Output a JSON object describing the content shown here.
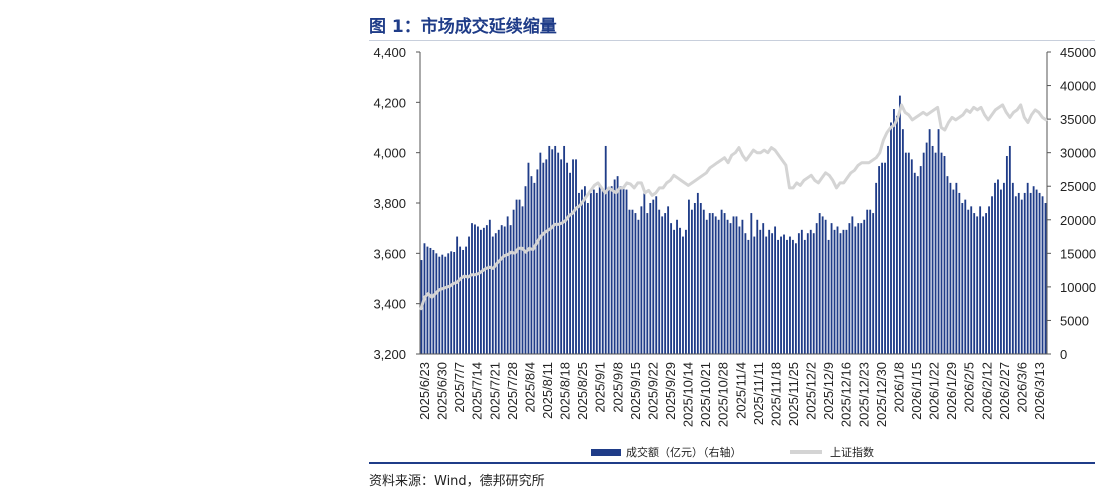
{
  "figure": {
    "title": "图 1：市场成交延续缩量",
    "source": "资料来源：Wind，德邦研究所"
  },
  "colors": {
    "bar": "#1f3c88",
    "line": "#d4d4d4",
    "axis": "#555555"
  },
  "chart_data": {
    "type": "bar+line",
    "title": "市场成交延续缩量",
    "left_axis": {
      "ylim": [
        3200,
        4400
      ],
      "ticks": [
        "4,400",
        "4,200",
        "4,000",
        "3,800",
        "3,600",
        "3,400",
        "3,200"
      ],
      "tick_values": [
        4400,
        4200,
        4000,
        3800,
        3600,
        3400,
        3200
      ]
    },
    "right_axis": {
      "ylim": [
        0,
        45000
      ],
      "ticks": [
        "45000",
        "40000",
        "35000",
        "30000",
        "25000",
        "20000",
        "15000",
        "10000",
        "5000",
        "0"
      ],
      "tick_values": [
        45000,
        40000,
        35000,
        30000,
        25000,
        20000,
        15000,
        10000,
        5000,
        0
      ]
    },
    "x_tick_labels": [
      "2025/6/23",
      "2025/6/30",
      "2025/7/7",
      "2025/7/14",
      "2025/7/21",
      "2025/7/28",
      "2025/8/4",
      "2025/8/11",
      "2025/8/18",
      "2025/8/25",
      "2025/9/1",
      "2025/9/8",
      "2025/9/15",
      "2025/9/22",
      "2025/9/29",
      "2025/10/14",
      "2025/10/21",
      "2025/10/28",
      "2025/11/4",
      "2025/11/11",
      "2025/11/18",
      "2025/11/25",
      "2025/12/2",
      "2025/12/9",
      "2025/12/16",
      "2025/12/23",
      "2025/12/30",
      "2026/1/8",
      "2026/1/15",
      "2026/1/22",
      "2026/1/29",
      "2026/2/5",
      "2026/2/12",
      "2026/2/27",
      "2026/3/6",
      "2026/3/13"
    ],
    "series": [
      {
        "name": "成交额（亿元）（右轴）",
        "type": "bar",
        "axis": "right",
        "values": [
          14000,
          16500,
          16000,
          15800,
          15500,
          15000,
          14500,
          14800,
          14500,
          15000,
          15300,
          15200,
          17500,
          16000,
          15500,
          16000,
          17500,
          19500,
          19300,
          19000,
          18500,
          18800,
          19200,
          20000,
          17500,
          18000,
          18500,
          19200,
          19000,
          20500,
          19200,
          21500,
          23000,
          23000,
          22000,
          25000,
          28500,
          26500,
          25500,
          27500,
          30000,
          28500,
          29000,
          31000,
          30500,
          31000,
          30000,
          29000,
          31000,
          28500,
          27000,
          29000,
          29000,
          24000,
          24500,
          25000,
          22500,
          24000,
          24500,
          24000,
          25000,
          24500,
          31000,
          24500,
          25000,
          26000,
          26500,
          25000,
          25000,
          24500,
          21500,
          21500,
          21000,
          20000,
          22000,
          24000,
          21000,
          22500,
          23000,
          23500,
          21500,
          20500,
          21000,
          22000,
          19500,
          18500,
          20000,
          18800,
          17500,
          18500,
          23000,
          21500,
          22500,
          24000,
          22500,
          21500,
          20000,
          21000,
          21000,
          20500,
          20000,
          21500,
          21000,
          20000,
          19500,
          20500,
          20500,
          19000,
          20000,
          18000,
          17000,
          21000,
          17500,
          20000,
          18500,
          19500,
          17500,
          18500,
          18000,
          19000,
          17000,
          17500,
          17800,
          17000,
          17500,
          17000,
          16500,
          18000,
          18500,
          17000,
          18000,
          18500,
          18000,
          19500,
          21000,
          20500,
          20000,
          17000,
          19500,
          18500,
          19000,
          18000,
          18500,
          18500,
          19500,
          20500,
          19000,
          19500,
          19500,
          20000,
          21500,
          21500,
          21000,
          25500,
          28000,
          28500,
          28500,
          31000,
          34500,
          36500,
          35500,
          38500,
          33500,
          30000,
          30000,
          29000,
          27000,
          26500,
          28000,
          30000,
          31500,
          33500,
          31000,
          30000,
          33500,
          30000,
          29500,
          26500,
          25500,
          24500,
          25500,
          24000,
          22500,
          23000,
          21500,
          22000,
          21000,
          20500,
          22000,
          20500,
          21000,
          22000,
          23500,
          25500,
          26000,
          24500,
          25500,
          29500,
          31000,
          25500,
          23500,
          24000,
          23000,
          24000,
          25500,
          24000,
          25000,
          24500,
          24000,
          23500,
          22500
        ]
      },
      {
        "name": "上证指数",
        "type": "line",
        "axis": "left",
        "values": [
          3380,
          3425,
          3440,
          3425,
          3440,
          3455,
          3460,
          3465,
          3470,
          3480,
          3485,
          3500,
          3510,
          3505,
          3515,
          3515,
          3520,
          3530,
          3540,
          3545,
          3540,
          3560,
          3575,
          3590,
          3595,
          3605,
          3600,
          3620,
          3620,
          3605,
          3620,
          3615,
          3640,
          3665,
          3680,
          3690,
          3700,
          3715,
          3715,
          3720,
          3730,
          3750,
          3760,
          3780,
          3790,
          3810,
          3830,
          3850,
          3870,
          3880,
          3860,
          3840,
          3860,
          3850,
          3840,
          3860,
          3860,
          3880,
          3875,
          3860,
          3880,
          3880,
          3840,
          3850,
          3830,
          3840,
          3860,
          3860,
          3880,
          3890,
          3910,
          3900,
          3890,
          3880,
          3870,
          3880,
          3890,
          3900,
          3910,
          3920,
          3940,
          3950,
          3960,
          3970,
          3980,
          3960,
          3990,
          4000,
          4020,
          3990,
          3970,
          3990,
          4010,
          4000,
          4000,
          4010,
          4000,
          4020,
          4010,
          3990,
          3970,
          3950,
          3860,
          3860,
          3880,
          3870,
          3890,
          3900,
          3910,
          3890,
          3880,
          3900,
          3920,
          3910,
          3890,
          3860,
          3880,
          3880,
          3900,
          3920,
          3930,
          3950,
          3960,
          3960,
          3960,
          3970,
          3980,
          4000,
          4050,
          4080,
          4100,
          4110,
          4140,
          4190,
          4160,
          4150,
          4130,
          4140,
          4150,
          4160,
          4150,
          4160,
          4170,
          4180,
          4100,
          4090,
          4120,
          4140,
          4130,
          4140,
          4150,
          4170,
          4160,
          4180,
          4170,
          4180,
          4150,
          4130,
          4150,
          4170,
          4180,
          4190,
          4160,
          4140,
          4160,
          4170,
          4190,
          4140,
          4120,
          4150,
          4170,
          4160,
          4140,
          4130
        ]
      }
    ],
    "legend": {
      "position": "bottom"
    },
    "grid": false
  }
}
